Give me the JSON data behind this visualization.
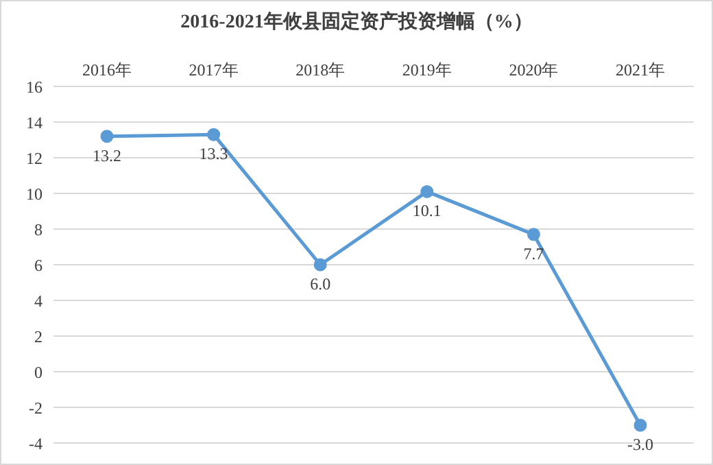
{
  "chart_data": {
    "type": "line",
    "title": "2016-2021年攸县固定资产投资增幅（%）",
    "categories": [
      "2016年",
      "2017年",
      "2018年",
      "2019年",
      "2020年",
      "2021年"
    ],
    "series": [
      {
        "color": "#5b9bd5",
        "values": [
          13.2,
          13.3,
          6.0,
          10.1,
          7.7,
          -3.0
        ],
        "value_labels": [
          "13.2",
          "13.3",
          "6.0",
          "10.1",
          "7.7",
          "-3.0"
        ]
      }
    ],
    "ylim": [
      -4,
      16
    ],
    "yticks": [
      -4,
      -2,
      0,
      2,
      4,
      6,
      8,
      10,
      12,
      14,
      16
    ],
    "grid": "y",
    "legend": false,
    "marker": "circle",
    "line_style": "solid"
  }
}
